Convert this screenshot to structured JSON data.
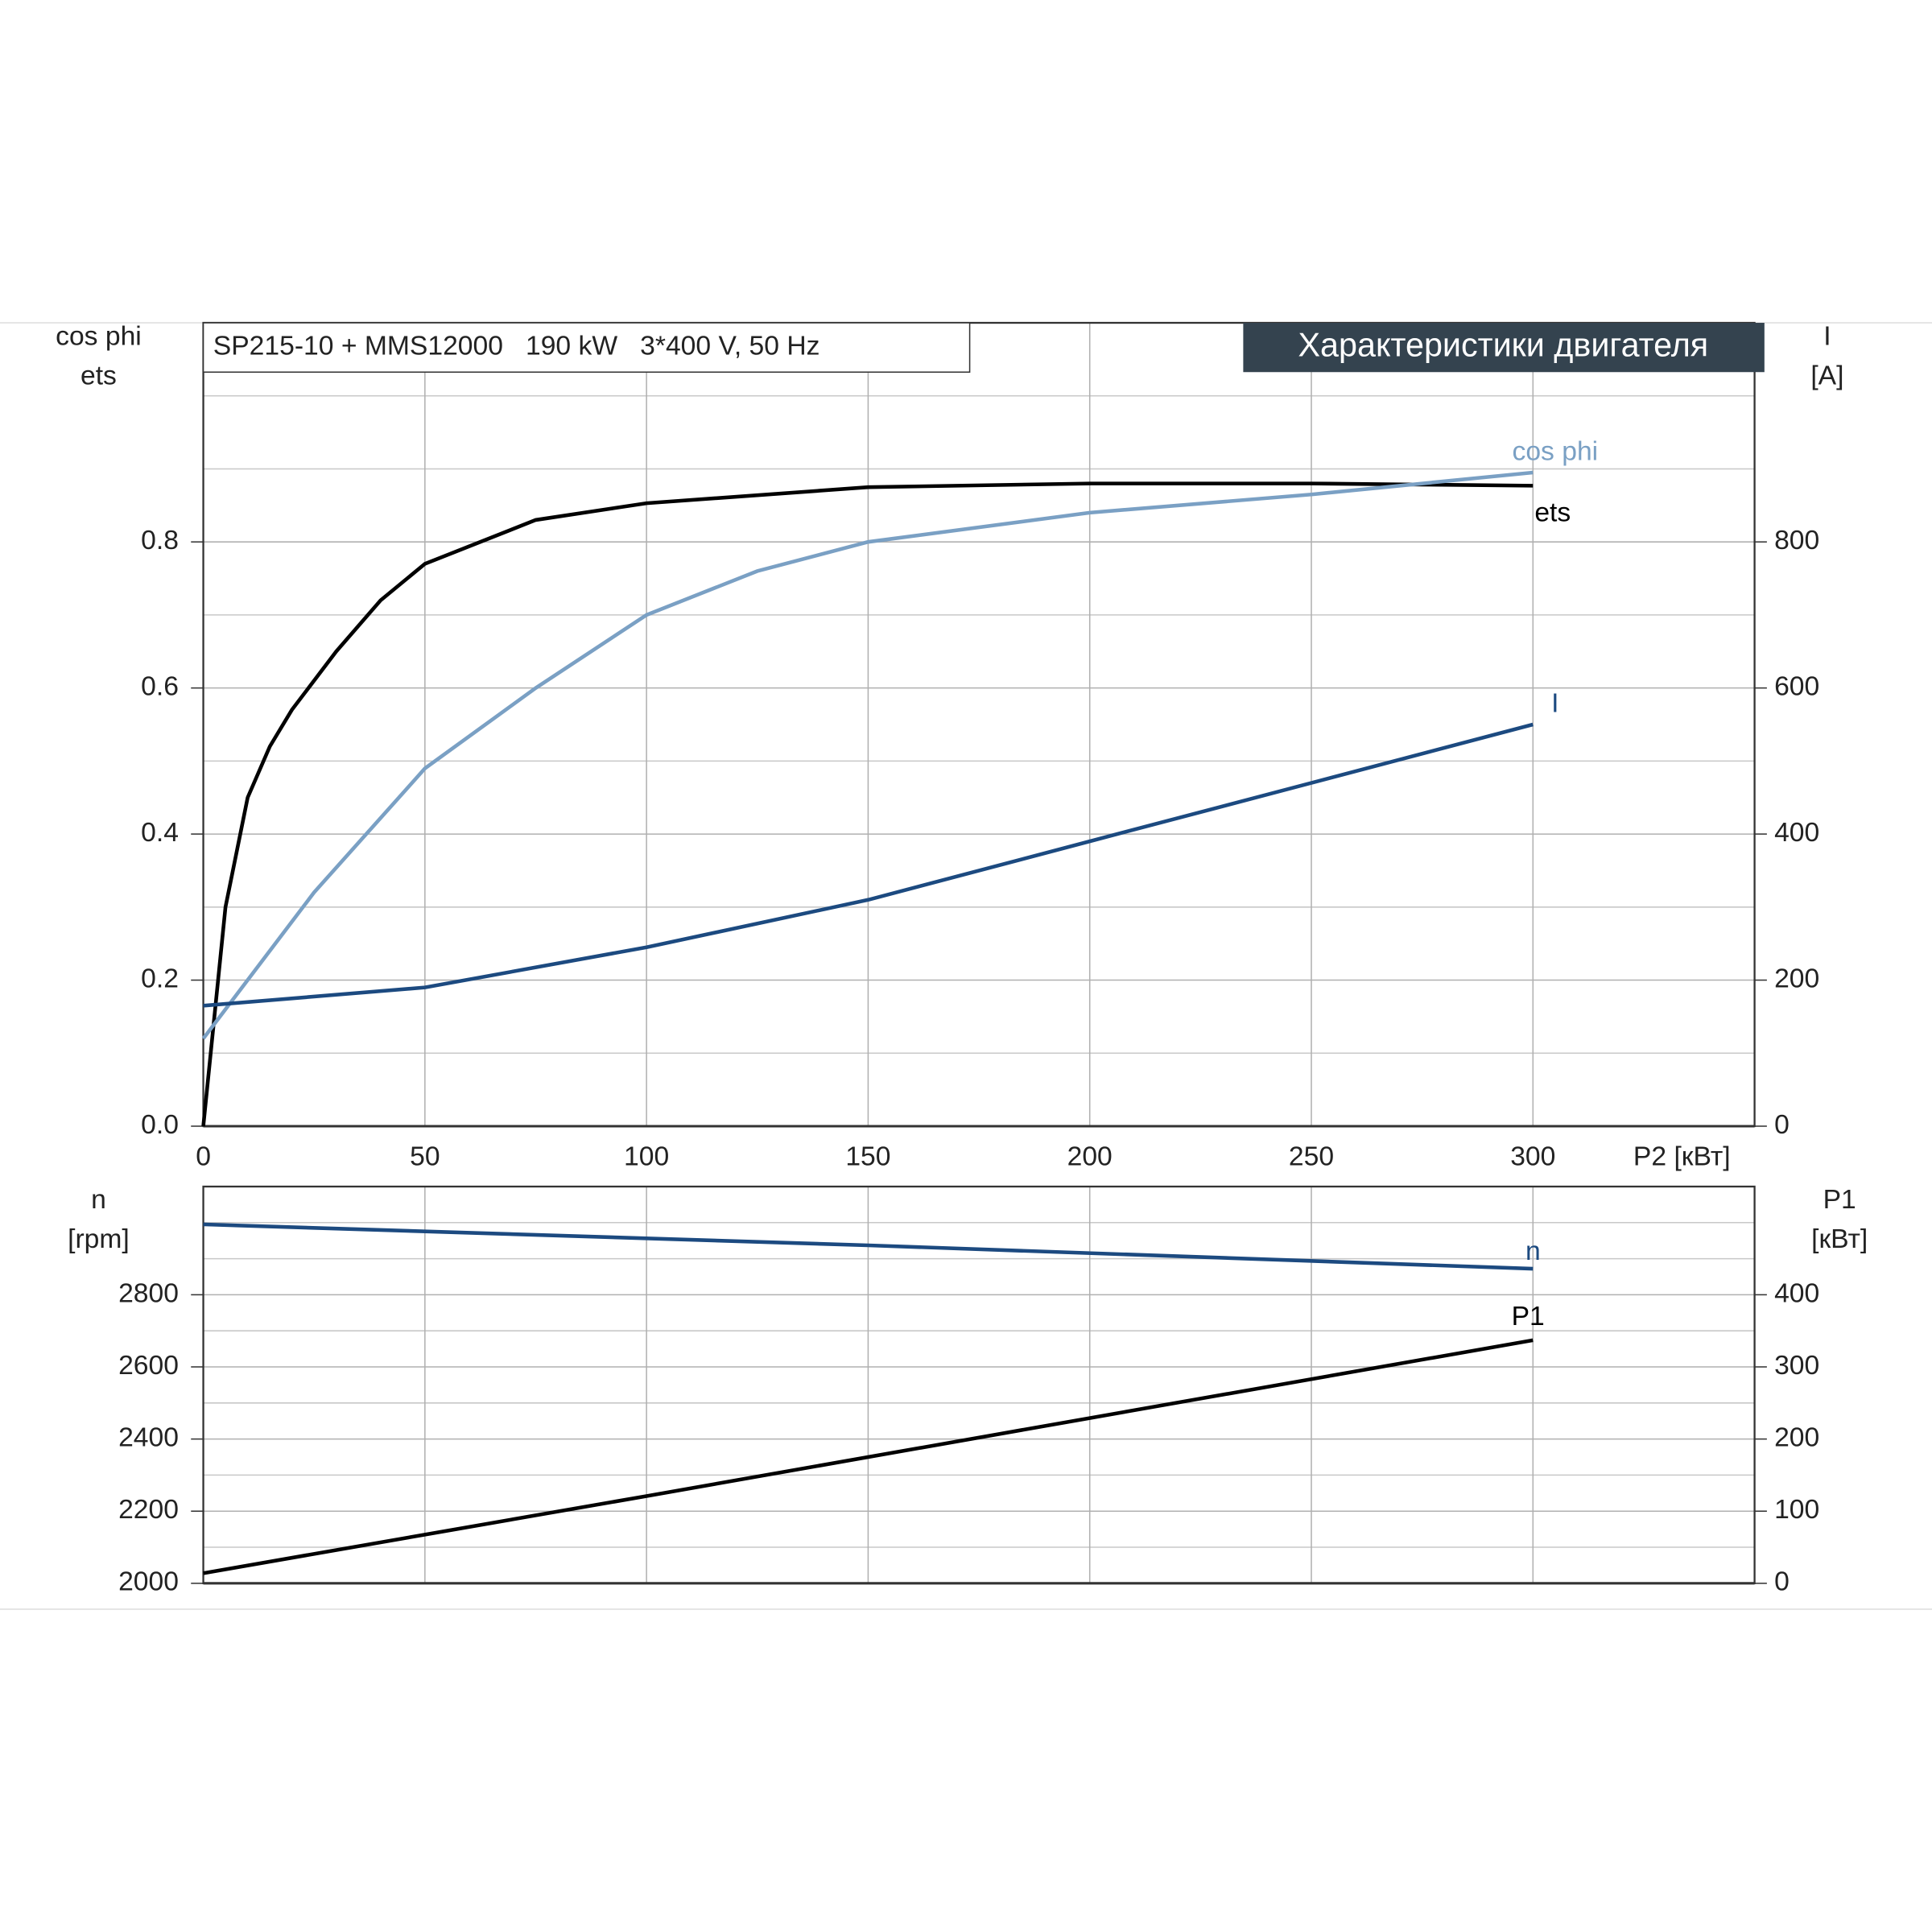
{
  "chart_data": [
    {
      "type": "line",
      "title": "SP215-10 + MMS12000   190 kW   3*400 V, 50 Hz",
      "header": "Характеристики двигателя",
      "ylabel": [
        "cos phi",
        "ets"
      ],
      "y2label": [
        "I",
        "[A]"
      ],
      "xlabel": "P2 [кВт]",
      "xlim": [
        0,
        350
      ],
      "xticks": [
        0,
        50,
        100,
        150,
        200,
        250,
        300
      ],
      "ylim": [
        0,
        1.1
      ],
      "yticks": [
        {
          "value": 0,
          "label": "0.0"
        },
        0.2,
        0.4,
        0.6,
        0.8
      ],
      "minor_grid": [
        0.1,
        0.3,
        0.5,
        0.7,
        0.9,
        1.0
      ],
      "y2lim": [
        0,
        1100
      ],
      "y2ticks": [
        0,
        200,
        400,
        600,
        800
      ],
      "series": [
        {
          "name": "ets",
          "color": "#000000",
          "x": [
            0,
            2,
            5,
            10,
            15,
            20,
            30,
            40,
            50,
            75,
            100,
            150,
            200,
            250,
            300
          ],
          "values": [
            0,
            0.12,
            0.3,
            0.45,
            0.52,
            0.57,
            0.65,
            0.72,
            0.77,
            0.83,
            0.853,
            0.875,
            0.88,
            0.88,
            0.877
          ]
        },
        {
          "name": "cos phi",
          "color": "#7aa0c4",
          "x": [
            0,
            25,
            50,
            75,
            100,
            125,
            150,
            200,
            250,
            300
          ],
          "values": [
            0.12,
            0.32,
            0.49,
            0.6,
            0.7,
            0.76,
            0.8,
            0.84,
            0.865,
            0.895
          ]
        },
        {
          "name": "I",
          "color": "#1c4a80",
          "axis": "y2",
          "x": [
            0,
            50,
            100,
            150,
            200,
            250,
            300
          ],
          "values": [
            165,
            190,
            245,
            310,
            390,
            470,
            550
          ]
        }
      ]
    },
    {
      "type": "line",
      "ylabel": [
        "n",
        "[rpm]"
      ],
      "y2label": [
        "P1",
        "[кВт]"
      ],
      "xlim": [
        0,
        350
      ],
      "xticks": [
        0,
        50,
        100,
        150,
        200,
        250,
        300
      ],
      "ylim": [
        2000,
        3100
      ],
      "yticks": [
        2000,
        2200,
        2400,
        2600,
        2800
      ],
      "minor_grid": [
        2100,
        2300,
        2500,
        2700,
        2900,
        3000
      ],
      "y2lim": [
        0,
        550
      ],
      "y2ticks": [
        0,
        100,
        200,
        300,
        400
      ],
      "series": [
        {
          "name": "n",
          "color": "#1c4a80",
          "x": [
            0,
            150,
            300
          ],
          "values": [
            2995,
            2937,
            2872
          ]
        },
        {
          "name": "P1",
          "color": "#000000",
          "axis": "y2",
          "x": [
            0,
            100,
            200,
            300
          ],
          "values": [
            14,
            121,
            229,
            337
          ]
        }
      ]
    }
  ]
}
